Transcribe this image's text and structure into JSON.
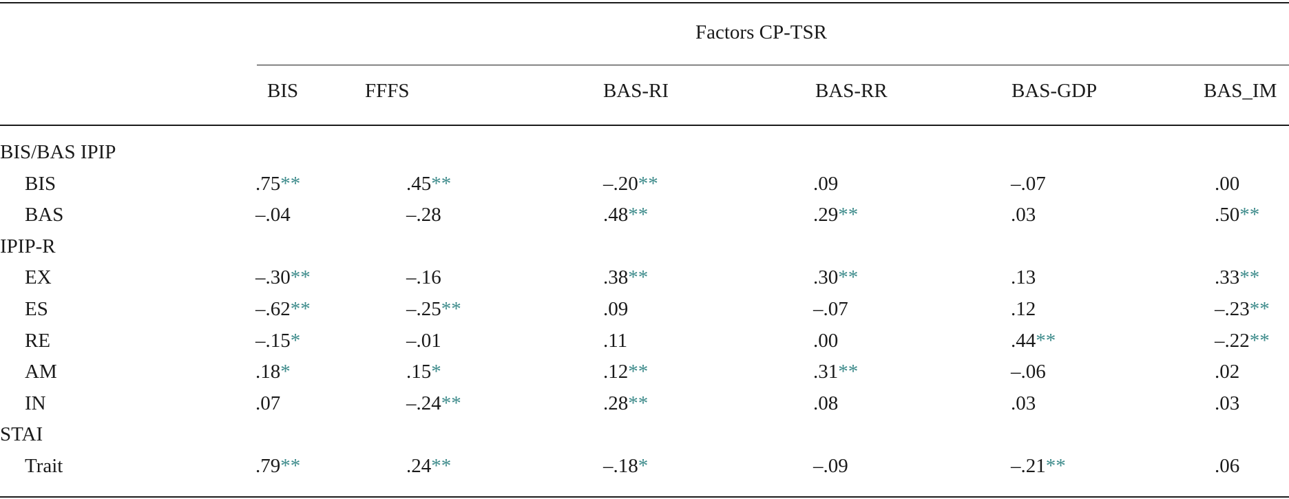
{
  "table": {
    "group_header": "Factors CP-TSR",
    "columns": [
      "BIS",
      "FFFS",
      "BAS-RI",
      "BAS-RR",
      "BAS-GDP",
      "BAS_IM"
    ],
    "sections": [
      {
        "label": "BIS/BAS IPIP",
        "rows": [
          {
            "label": "BIS",
            "cells": [
              {
                "value": ".75",
                "sig": "**"
              },
              {
                "value": ".45",
                "sig": "**"
              },
              {
                "value": "–.20",
                "sig": "**"
              },
              {
                "value": ".09",
                "sig": ""
              },
              {
                "value": "–.07",
                "sig": ""
              },
              {
                "value": ".00",
                "sig": ""
              }
            ]
          },
          {
            "label": "BAS",
            "cells": [
              {
                "value": "–.04",
                "sig": ""
              },
              {
                "value": "–.28",
                "sig": ""
              },
              {
                "value": ".48",
                "sig": "**"
              },
              {
                "value": ".29",
                "sig": "**"
              },
              {
                "value": ".03",
                "sig": ""
              },
              {
                "value": ".50",
                "sig": "**"
              }
            ]
          }
        ]
      },
      {
        "label": "IPIP-R",
        "rows": [
          {
            "label": "EX",
            "cells": [
              {
                "value": "–.30",
                "sig": "**"
              },
              {
                "value": "–.16",
                "sig": ""
              },
              {
                "value": ".38",
                "sig": "**"
              },
              {
                "value": ".30",
                "sig": "**"
              },
              {
                "value": ".13",
                "sig": ""
              },
              {
                "value": ".33",
                "sig": "**"
              }
            ]
          },
          {
            "label": "ES",
            "cells": [
              {
                "value": "–.62",
                "sig": "**"
              },
              {
                "value": "–.25",
                "sig": "**"
              },
              {
                "value": ".09",
                "sig": ""
              },
              {
                "value": "–.07",
                "sig": ""
              },
              {
                "value": ".12",
                "sig": ""
              },
              {
                "value": "–.23",
                "sig": "**"
              }
            ]
          },
          {
            "label": "RE",
            "cells": [
              {
                "value": "–.15",
                "sig": "*"
              },
              {
                "value": "–.01",
                "sig": ""
              },
              {
                "value": ".11",
                "sig": ""
              },
              {
                "value": ".00",
                "sig": ""
              },
              {
                "value": ".44",
                "sig": "**"
              },
              {
                "value": "–.22",
                "sig": "**"
              }
            ]
          },
          {
            "label": "AM",
            "cells": [
              {
                "value": ".18",
                "sig": "*"
              },
              {
                "value": ".15",
                "sig": "*"
              },
              {
                "value": ".12",
                "sig": "**"
              },
              {
                "value": ".31",
                "sig": "**"
              },
              {
                "value": "–.06",
                "sig": ""
              },
              {
                "value": ".02",
                "sig": ""
              }
            ]
          },
          {
            "label": "IN",
            "cells": [
              {
                "value": ".07",
                "sig": ""
              },
              {
                "value": "–.24",
                "sig": "**"
              },
              {
                "value": ".28",
                "sig": "**"
              },
              {
                "value": ".08",
                "sig": ""
              },
              {
                "value": ".03",
                "sig": ""
              },
              {
                "value": ".03",
                "sig": ""
              }
            ]
          }
        ]
      },
      {
        "label": "STAI",
        "rows": [
          {
            "label": "Trait",
            "cells": [
              {
                "value": ".79",
                "sig": "**"
              },
              {
                "value": ".24",
                "sig": "**"
              },
              {
                "value": "–.18",
                "sig": "*"
              },
              {
                "value": "–.09",
                "sig": ""
              },
              {
                "value": "–.21",
                "sig": "**"
              },
              {
                "value": ".06",
                "sig": ""
              }
            ]
          }
        ]
      }
    ]
  },
  "colors": {
    "text": "#1a1a1a",
    "significance": "#3d8b8b"
  }
}
